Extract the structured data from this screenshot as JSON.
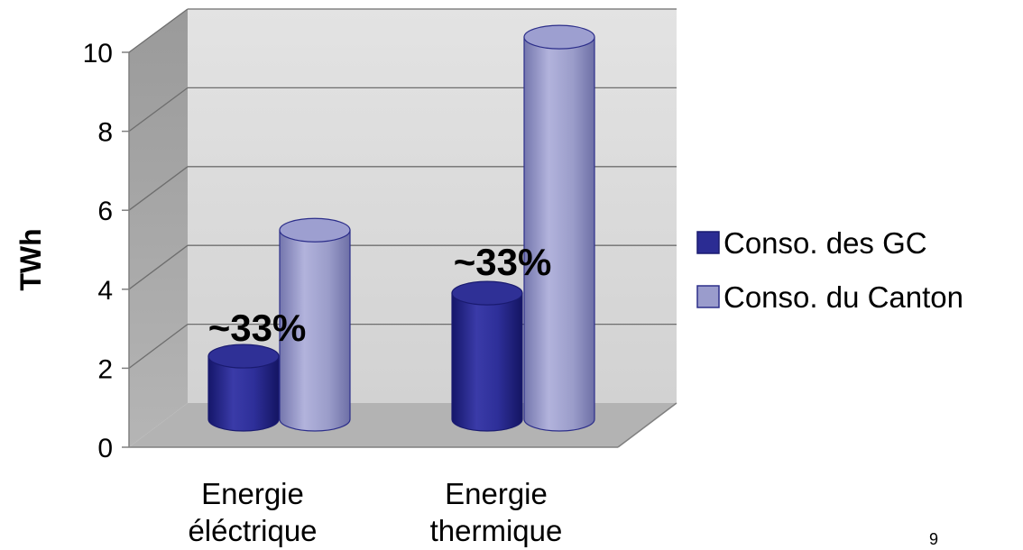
{
  "page_number": "9",
  "chart_data": {
    "type": "bar",
    "three_d": true,
    "bar_shape": "cylinder",
    "ylabel": "TWh",
    "xlabel": "",
    "ylim": [
      0,
      10
    ],
    "y_ticks": [
      "0",
      "2",
      "4",
      "6",
      "8",
      "10"
    ],
    "grid": true,
    "legend_position": "right",
    "categories": [
      "Energie éléctrique",
      "Energie thermique"
    ],
    "category_lines": [
      [
        "Energie",
        "éléctrique"
      ],
      [
        "Energie",
        "thermique"
      ]
    ],
    "series": [
      {
        "name": "Conso. des GC",
        "values": [
          1.6,
          3.2
        ],
        "color": "#2B2C93"
      },
      {
        "name": "Conso. du Canton",
        "values": [
          4.8,
          9.7
        ],
        "color": "#9A9CCC"
      }
    ],
    "annotations": [
      {
        "text": "~33%",
        "category": 0
      },
      {
        "text": "~33%",
        "category": 1
      }
    ],
    "colors": {
      "wall": "#DEDEDE",
      "side_wall": "#A6A6A6",
      "floor": "#B4B4B4",
      "grid": "#6E6E6E"
    }
  }
}
